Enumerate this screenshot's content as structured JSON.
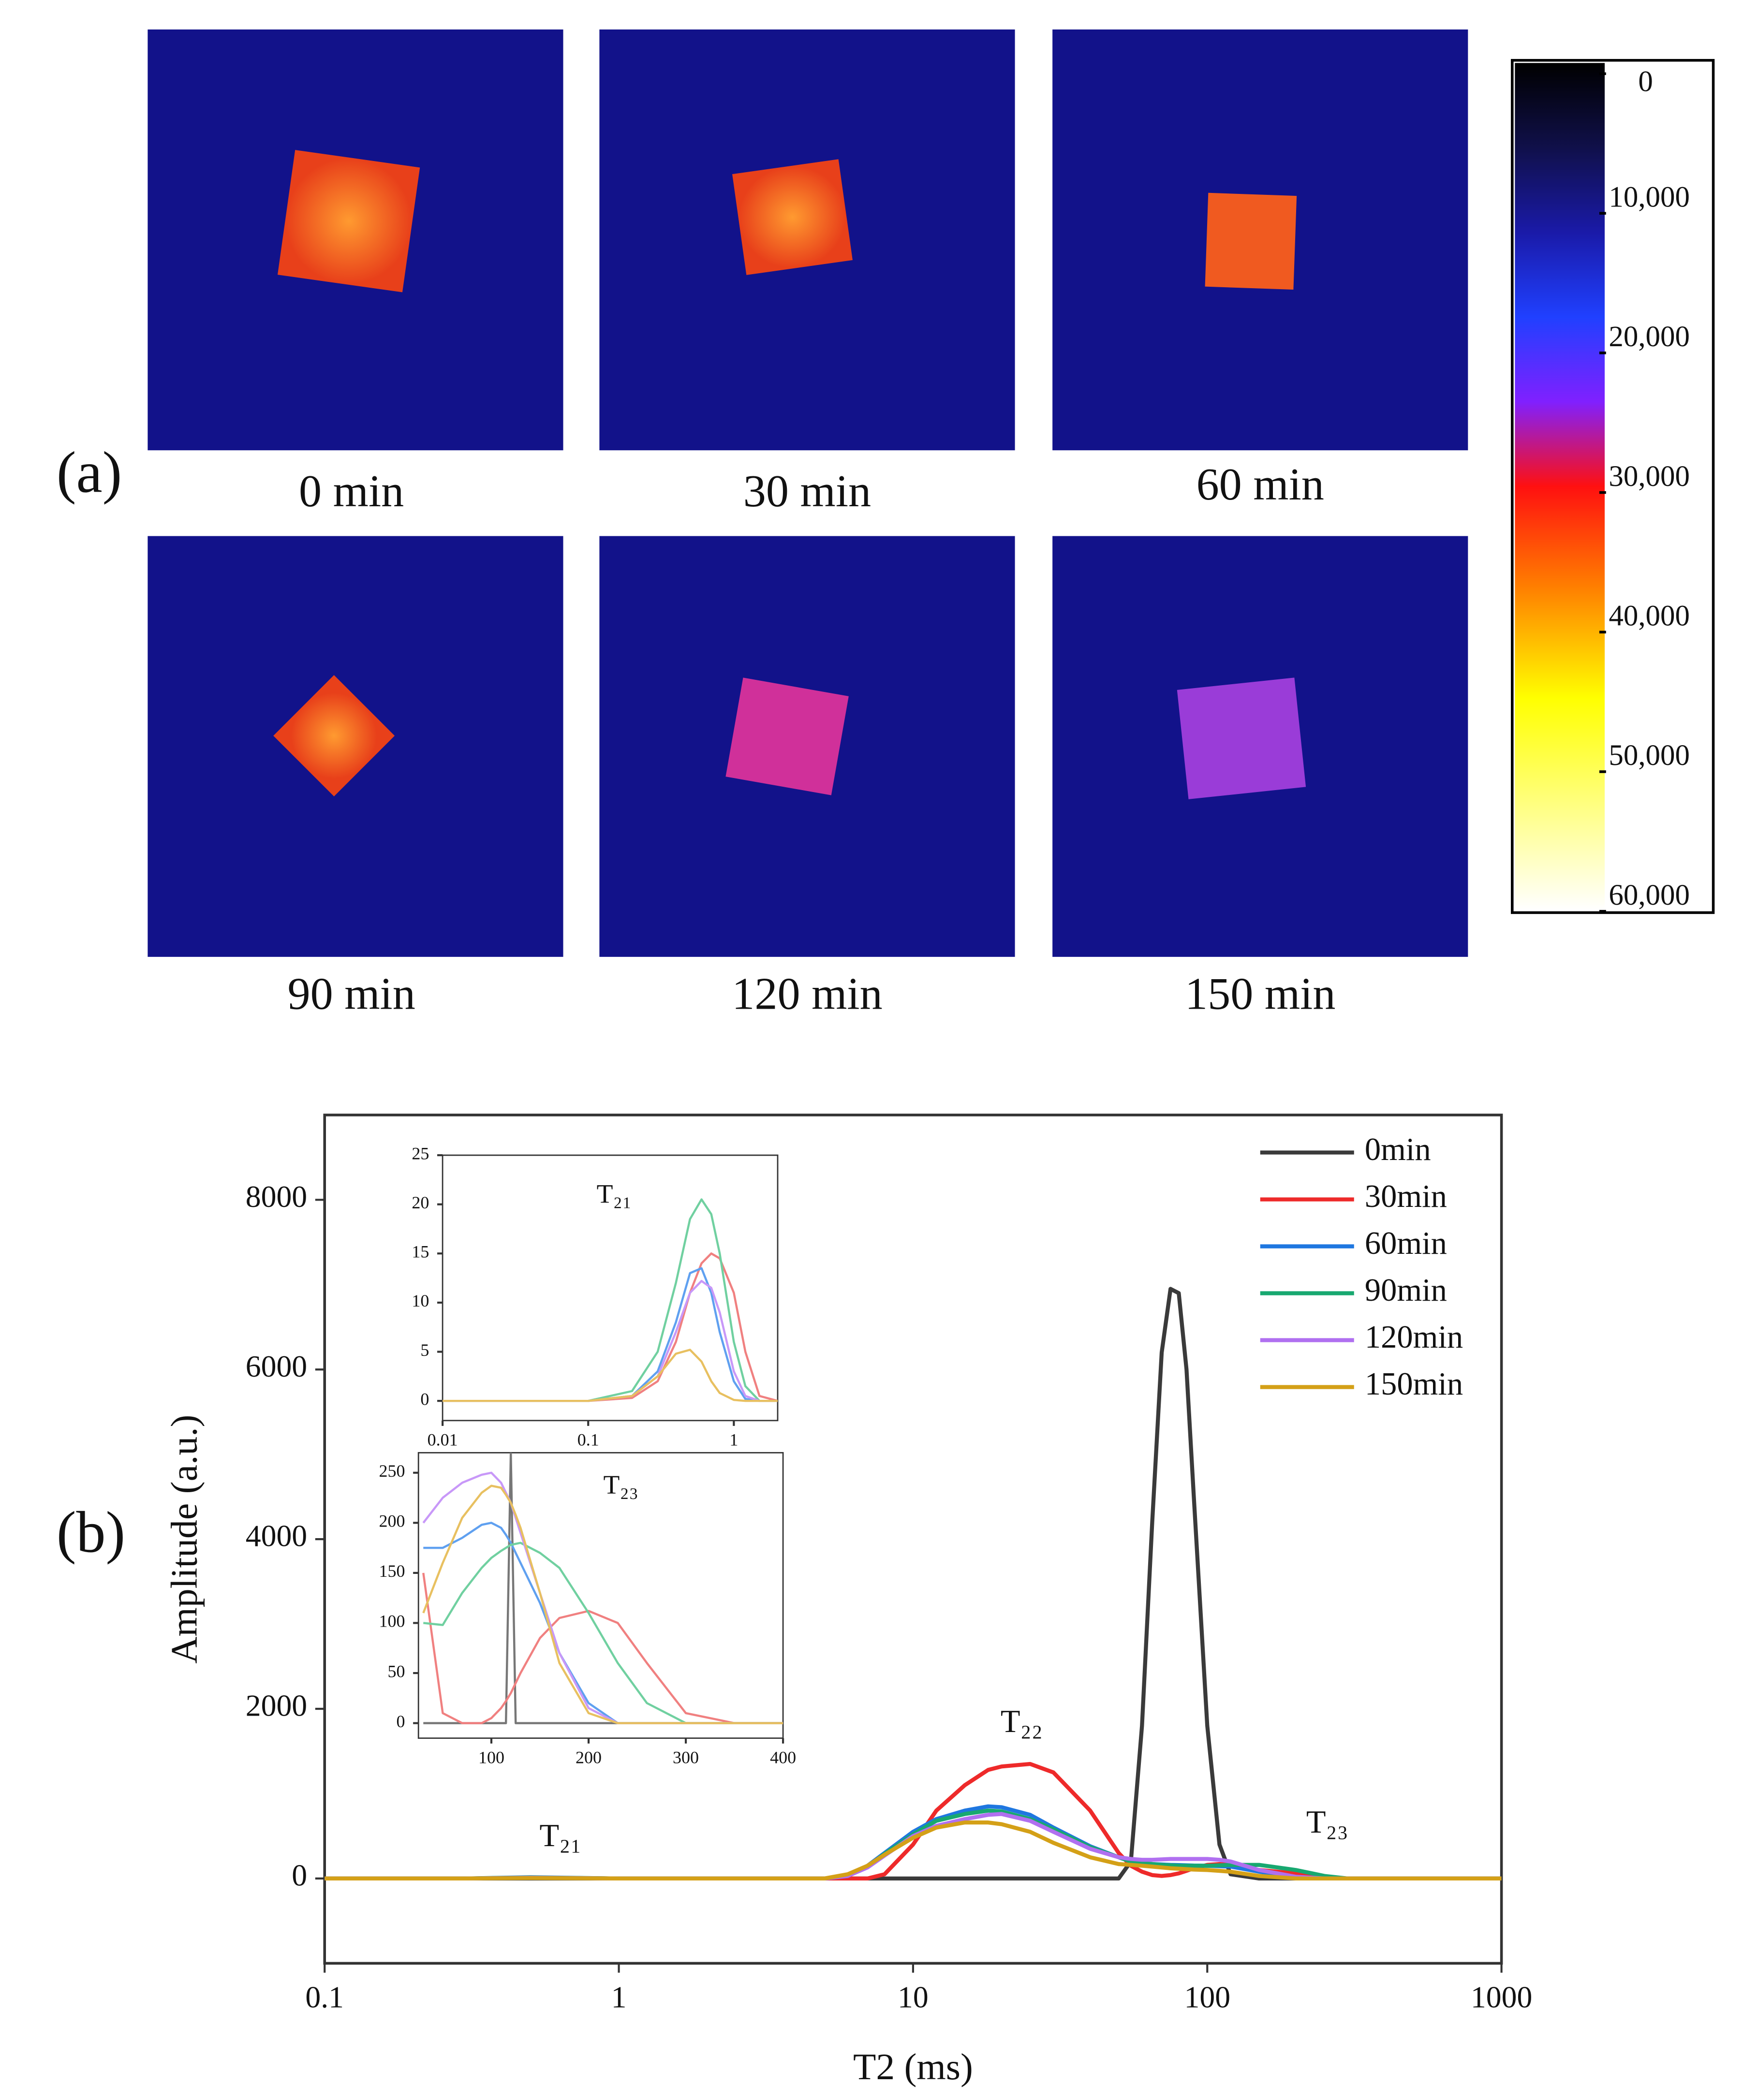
{
  "panel_a": {
    "label": "(a)",
    "captions": [
      "0 min",
      "30 min",
      "60 min",
      "90 min",
      "120 min",
      "150 min"
    ],
    "colorbar": {
      "lim": [
        0,
        60000
      ],
      "ticks": [
        0,
        {
          "value": 10000,
          "label": "10,000"
        },
        {
          "value": 20000,
          "label": "20,000"
        },
        {
          "value": 30000,
          "label": "30,000"
        },
        {
          "value": 40000,
          "label": "40,000"
        },
        {
          "value": 50000,
          "label": "50,000"
        },
        {
          "value": 60000,
          "label": "60,000"
        }
      ]
    }
  },
  "panel_b": {
    "label": "(b)"
  },
  "chart_data": [
    {
      "type": "line",
      "x_label": "T2 (ms)",
      "y_label": "Amplitude (a.u.)",
      "x_scale": "log",
      "xlim": [
        0.1,
        1000
      ],
      "xticks": [
        0.1,
        1,
        10,
        100,
        1000
      ],
      "ylim": [
        -1000,
        9000
      ],
      "yticks": [
        0,
        2000,
        4000,
        6000,
        8000
      ],
      "legend": "upper right",
      "annotations": [
        "T₂₁",
        "T₂₂",
        "T₂₃"
      ],
      "x": [
        0.1,
        0.3,
        0.5,
        1,
        2,
        5,
        6,
        7,
        8,
        10,
        12,
        15,
        18,
        20,
        25,
        30,
        40,
        50,
        55,
        60,
        65,
        70,
        75,
        80,
        85,
        90,
        100,
        110,
        120,
        150,
        200,
        250,
        300,
        500,
        1000
      ],
      "series": [
        {
          "name": "0min",
          "color": "#3a3a3a",
          "values": [
            0,
            0,
            0,
            0,
            0,
            0,
            0,
            0,
            0,
            0,
            0,
            0,
            0,
            0,
            0,
            0,
            0,
            0,
            200,
            1800,
            4200,
            6200,
            6950,
            6900,
            6000,
            4500,
            1800,
            400,
            50,
            0,
            0,
            0,
            0,
            0,
            0
          ]
        },
        {
          "name": "30min",
          "color": "#ee2a2a",
          "values": [
            0,
            0,
            10,
            0,
            0,
            0,
            0,
            0,
            50,
            400,
            800,
            1100,
            1280,
            1320,
            1350,
            1250,
            800,
            300,
            150,
            80,
            40,
            30,
            40,
            60,
            90,
            120,
            160,
            170,
            160,
            100,
            60,
            20,
            0,
            0,
            0
          ]
        },
        {
          "name": "60min",
          "color": "#1f77e0",
          "values": [
            0,
            0,
            10,
            0,
            0,
            0,
            30,
            150,
            300,
            550,
            700,
            800,
            850,
            840,
            750,
            600,
            380,
            250,
            200,
            180,
            170,
            165,
            160,
            158,
            155,
            152,
            150,
            145,
            140,
            80,
            20,
            0,
            0,
            0,
            0
          ]
        },
        {
          "name": "90min",
          "color": "#18a870",
          "values": [
            0,
            0,
            15,
            0,
            0,
            0,
            30,
            140,
            290,
            520,
            680,
            760,
            800,
            790,
            700,
            580,
            370,
            250,
            200,
            180,
            170,
            160,
            155,
            150,
            150,
            150,
            150,
            155,
            160,
            160,
            100,
            30,
            0,
            0,
            0
          ]
        },
        {
          "name": "120min",
          "color": "#b070f0",
          "values": [
            0,
            0,
            10,
            0,
            0,
            0,
            30,
            130,
            270,
            500,
            620,
            700,
            750,
            760,
            680,
            550,
            350,
            250,
            230,
            220,
            220,
            225,
            230,
            230,
            230,
            230,
            230,
            220,
            200,
            100,
            20,
            0,
            0,
            0,
            0
          ]
        },
        {
          "name": "150min",
          "color": "#d4a017",
          "values": [
            0,
            0,
            5,
            0,
            0,
            0,
            50,
            150,
            280,
            480,
            600,
            660,
            660,
            640,
            550,
            420,
            250,
            170,
            160,
            150,
            140,
            130,
            120,
            115,
            110,
            105,
            100,
            90,
            80,
            30,
            0,
            0,
            0,
            0,
            0
          ]
        }
      ]
    },
    {
      "type": "line",
      "title": "T₂₁",
      "x_scale": "log",
      "xlim": [
        0.01,
        2
      ],
      "xticks": [
        0.01,
        0.1,
        1
      ],
      "ylim": [
        -2,
        25
      ],
      "yticks": [
        0,
        5,
        10,
        15,
        20,
        25
      ],
      "x": [
        0.01,
        0.1,
        0.2,
        0.3,
        0.4,
        0.5,
        0.6,
        0.7,
        0.8,
        1,
        1.2,
        1.5,
        2
      ],
      "series": [
        {
          "color": "#f08080",
          "values": [
            0,
            0,
            0.3,
            2,
            6,
            11,
            14,
            15,
            14.5,
            11,
            5,
            0.5,
            0
          ]
        },
        {
          "color": "#5fa0f0",
          "values": [
            0,
            0,
            0.5,
            3,
            8,
            13,
            13.5,
            11,
            7,
            2,
            0.2,
            0,
            0
          ]
        },
        {
          "color": "#70d0a0",
          "values": [
            0,
            0,
            1,
            5,
            12,
            18.5,
            20.5,
            19,
            15,
            6,
            1.5,
            0,
            0
          ]
        },
        {
          "color": "#c898f8",
          "values": [
            0,
            0,
            0.5,
            2.5,
            7,
            11,
            12.2,
            11.5,
            9,
            3,
            0.5,
            0,
            0
          ]
        },
        {
          "color": "#e8c060",
          "values": [
            0,
            0,
            0.5,
            2.5,
            4.8,
            5.2,
            4,
            2,
            0.8,
            0.1,
            0,
            0,
            0
          ]
        }
      ]
    },
    {
      "type": "line",
      "title": "T₂₃",
      "x_scale": "linear",
      "xlim": [
        25,
        400
      ],
      "xticks": [
        100,
        200,
        300,
        400
      ],
      "ylim": [
        -15,
        270
      ],
      "yticks": [
        0,
        50,
        100,
        150,
        200,
        250
      ],
      "x": [
        30,
        50,
        70,
        90,
        100,
        110,
        115,
        120,
        125,
        130,
        150,
        170,
        200,
        230,
        260,
        300,
        350,
        400
      ],
      "series": [
        {
          "color": "#777777",
          "values": [
            0,
            0,
            0,
            0,
            0,
            0,
            0,
            270,
            0,
            0,
            0,
            0,
            0,
            0,
            0,
            0,
            0,
            0
          ]
        },
        {
          "color": "#f08080",
          "values": [
            150,
            10,
            0,
            0,
            5,
            15,
            22,
            30,
            40,
            50,
            85,
            105,
            112,
            100,
            60,
            10,
            0,
            0
          ]
        },
        {
          "color": "#5fa0f0",
          "values": [
            175,
            175,
            185,
            198,
            200,
            195,
            188,
            180,
            170,
            160,
            120,
            70,
            20,
            0,
            0,
            0,
            0,
            0
          ]
        },
        {
          "color": "#70d0a0",
          "values": [
            100,
            98,
            130,
            155,
            165,
            172,
            175,
            178,
            179,
            180,
            170,
            155,
            110,
            60,
            20,
            0,
            0,
            0
          ]
        },
        {
          "color": "#c898f8",
          "values": [
            200,
            225,
            240,
            248,
            250,
            240,
            230,
            220,
            205,
            190,
            130,
            70,
            15,
            0,
            0,
            0,
            0,
            0
          ]
        },
        {
          "color": "#e8c060",
          "values": [
            110,
            160,
            205,
            230,
            237,
            235,
            228,
            220,
            208,
            195,
            130,
            60,
            10,
            0,
            0,
            0,
            0,
            0
          ]
        }
      ]
    }
  ]
}
